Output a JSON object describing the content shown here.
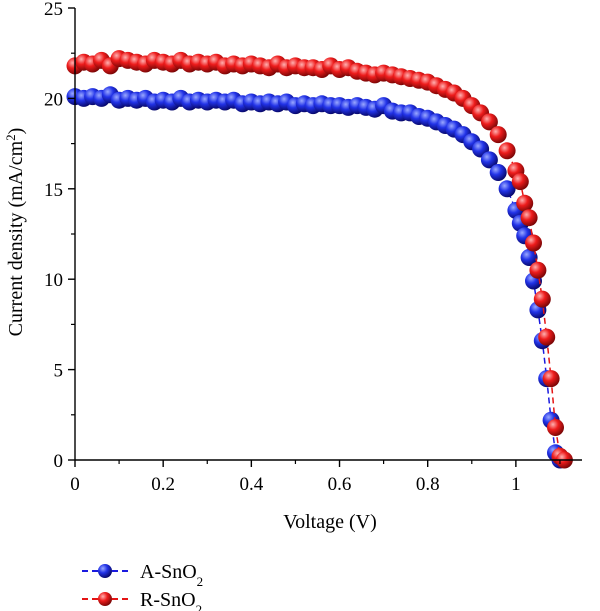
{
  "chart_data": {
    "type": "scatter",
    "xlabel": "Voltage (V)",
    "ylabel": {
      "main": "Current density (mA/cm",
      "sup": "2",
      "close": ")"
    },
    "xlim": [
      0,
      1.15
    ],
    "ylim": [
      0,
      25
    ],
    "xticks": [
      "0",
      "0.2",
      "0.4",
      "0.6",
      "0.8",
      "1"
    ],
    "xtick_values": [
      0,
      0.2,
      0.4,
      0.6,
      0.8,
      1.0
    ],
    "yticks": [
      "0",
      "5",
      "10",
      "15",
      "20",
      "25"
    ],
    "ytick_values": [
      0,
      5,
      10,
      15,
      20,
      25
    ],
    "grid": false,
    "legend_placement": "bottom-left",
    "series": [
      {
        "name": "A-SnO",
        "name_sub": "2",
        "color": "#1a1adf",
        "line": "dashed",
        "x": [
          0.0,
          0.02,
          0.04,
          0.06,
          0.08,
          0.1,
          0.12,
          0.14,
          0.16,
          0.18,
          0.2,
          0.22,
          0.24,
          0.26,
          0.28,
          0.3,
          0.32,
          0.34,
          0.36,
          0.38,
          0.4,
          0.42,
          0.44,
          0.46,
          0.48,
          0.5,
          0.52,
          0.54,
          0.56,
          0.58,
          0.6,
          0.62,
          0.64,
          0.66,
          0.68,
          0.7,
          0.72,
          0.74,
          0.76,
          0.78,
          0.8,
          0.82,
          0.84,
          0.86,
          0.88,
          0.9,
          0.92,
          0.94,
          0.96,
          0.98,
          1.0,
          1.01,
          1.02,
          1.03,
          1.04,
          1.05,
          1.06,
          1.07,
          1.08,
          1.09,
          1.1
        ],
        "y": [
          20.1,
          20.0,
          20.1,
          20.0,
          20.2,
          19.9,
          20.0,
          19.9,
          20.0,
          19.8,
          19.9,
          19.8,
          20.0,
          19.8,
          19.9,
          19.8,
          19.9,
          19.8,
          19.9,
          19.7,
          19.8,
          19.7,
          19.8,
          19.7,
          19.8,
          19.6,
          19.7,
          19.6,
          19.7,
          19.6,
          19.6,
          19.5,
          19.6,
          19.5,
          19.4,
          19.6,
          19.3,
          19.2,
          19.2,
          19.0,
          18.9,
          18.7,
          18.5,
          18.3,
          18.0,
          17.6,
          17.2,
          16.6,
          15.9,
          15.0,
          13.8,
          13.1,
          12.4,
          11.2,
          9.9,
          8.3,
          6.6,
          4.5,
          2.2,
          0.4,
          0.0
        ]
      },
      {
        "name": "R-SnO",
        "name_sub": "2",
        "color": "#e41414",
        "line": "dashed",
        "x": [
          0.0,
          0.02,
          0.04,
          0.06,
          0.08,
          0.1,
          0.12,
          0.14,
          0.16,
          0.18,
          0.2,
          0.22,
          0.24,
          0.26,
          0.28,
          0.3,
          0.32,
          0.34,
          0.36,
          0.38,
          0.4,
          0.42,
          0.44,
          0.46,
          0.48,
          0.5,
          0.52,
          0.54,
          0.56,
          0.58,
          0.6,
          0.62,
          0.64,
          0.66,
          0.68,
          0.7,
          0.72,
          0.74,
          0.76,
          0.78,
          0.8,
          0.82,
          0.84,
          0.86,
          0.88,
          0.9,
          0.92,
          0.94,
          0.96,
          0.98,
          1.0,
          1.01,
          1.02,
          1.03,
          1.04,
          1.05,
          1.06,
          1.07,
          1.08,
          1.09,
          1.1,
          1.11
        ],
        "y": [
          21.8,
          22.0,
          21.9,
          22.1,
          21.8,
          22.2,
          22.1,
          22.0,
          21.9,
          22.1,
          22.0,
          21.9,
          22.1,
          21.9,
          22.0,
          21.9,
          22.0,
          21.8,
          21.9,
          21.8,
          21.9,
          21.8,
          21.7,
          21.9,
          21.7,
          21.8,
          21.7,
          21.7,
          21.6,
          21.8,
          21.6,
          21.7,
          21.5,
          21.4,
          21.3,
          21.4,
          21.3,
          21.2,
          21.1,
          21.0,
          20.9,
          20.7,
          20.5,
          20.3,
          20.0,
          19.6,
          19.2,
          18.7,
          18.0,
          17.1,
          16.0,
          15.4,
          14.2,
          13.4,
          12.0,
          10.5,
          8.9,
          6.8,
          4.5,
          1.8,
          0.2,
          0.0
        ]
      }
    ]
  }
}
